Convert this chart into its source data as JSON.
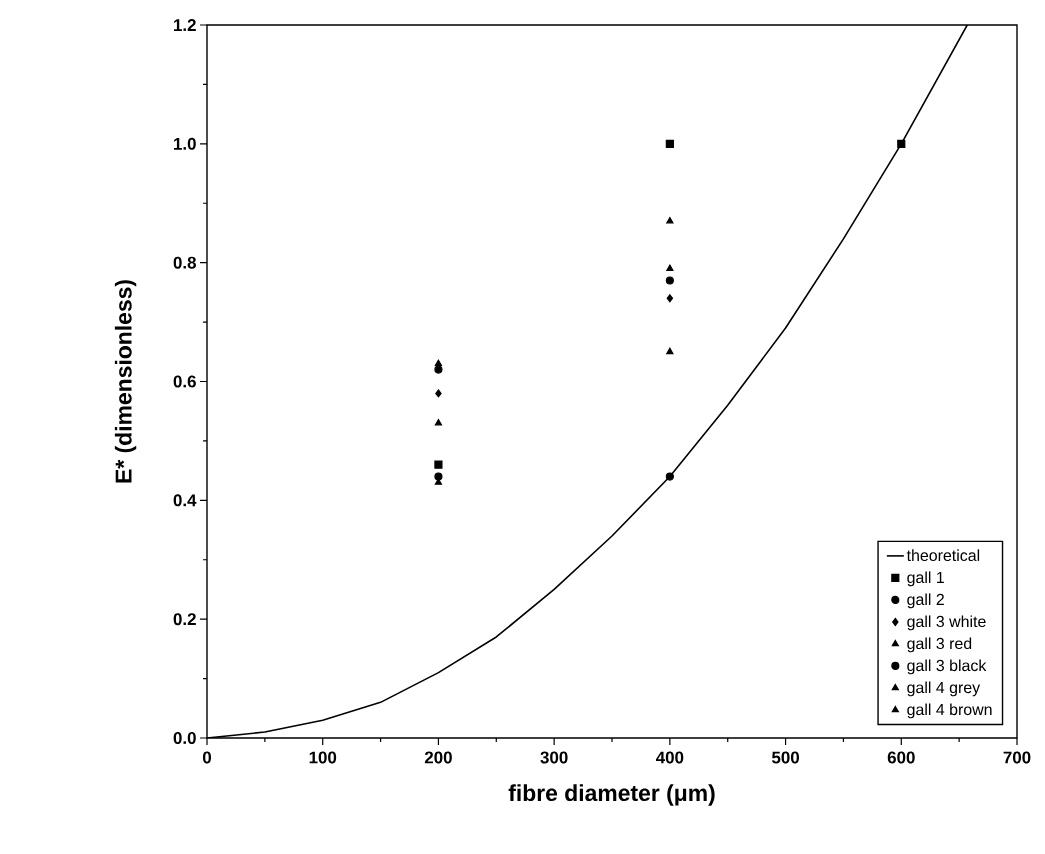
{
  "chart_data": {
    "type": "scatter",
    "xlabel": "fibre   diameter   (μm)",
    "ylabel": "E*    (dimensionless)",
    "xlim": [
      0,
      700
    ],
    "ylim": [
      0,
      1.2
    ],
    "xticks": [
      0,
      100,
      200,
      300,
      400,
      500,
      600,
      700
    ],
    "yticks": [
      {
        "value": 0,
        "label": "0.0"
      },
      0.2,
      0.4,
      0.6,
      0.8,
      {
        "value": 1,
        "label": "1.0"
      },
      1.2
    ],
    "grid": false,
    "legend": "bottom right",
    "series": [
      {
        "name": "theoretical",
        "type": "line",
        "color": "#000000",
        "marker": "none",
        "line_style": "solid",
        "x": [
          0,
          50,
          100,
          150,
          200,
          250,
          300,
          350,
          400,
          450,
          500,
          550,
          600,
          657
        ],
        "values": [
          0,
          0.01,
          0.03,
          0.06,
          0.11,
          0.17,
          0.25,
          0.34,
          0.44,
          0.56,
          0.69,
          0.84,
          1.0,
          1.2
        ]
      },
      {
        "name": "gall 1",
        "color": "#000000",
        "marker": "square",
        "x": [
          200,
          400,
          600
        ],
        "values": [
          0.46,
          1.0,
          1.0
        ]
      },
      {
        "name": "gall 2",
        "color": "#000000",
        "marker": "circle",
        "x": [
          200,
          400
        ],
        "values": [
          0.62,
          0.77
        ]
      },
      {
        "name": "gall 3 white",
        "color": "#000000",
        "marker": "diamond",
        "x": [
          200,
          400
        ],
        "values": [
          0.58,
          0.74
        ]
      },
      {
        "name": "gall 3 red",
        "color": "#000000",
        "marker": "triangle",
        "x": [
          200,
          400
        ],
        "values": [
          0.43,
          0.65
        ]
      },
      {
        "name": "gall 3 black",
        "color": "#000000",
        "marker": "circle",
        "x": [
          200,
          400
        ],
        "values": [
          0.44,
          0.44
        ]
      },
      {
        "name": "gall 4 grey",
        "color": "#000000",
        "marker": "triangle",
        "x": [
          200,
          400
        ],
        "values": [
          0.63,
          0.87
        ]
      },
      {
        "name": "gall 4 brown",
        "color": "#000000",
        "marker": "triangle",
        "x": [
          200,
          400
        ],
        "values": [
          0.53,
          0.79
        ]
      }
    ]
  }
}
